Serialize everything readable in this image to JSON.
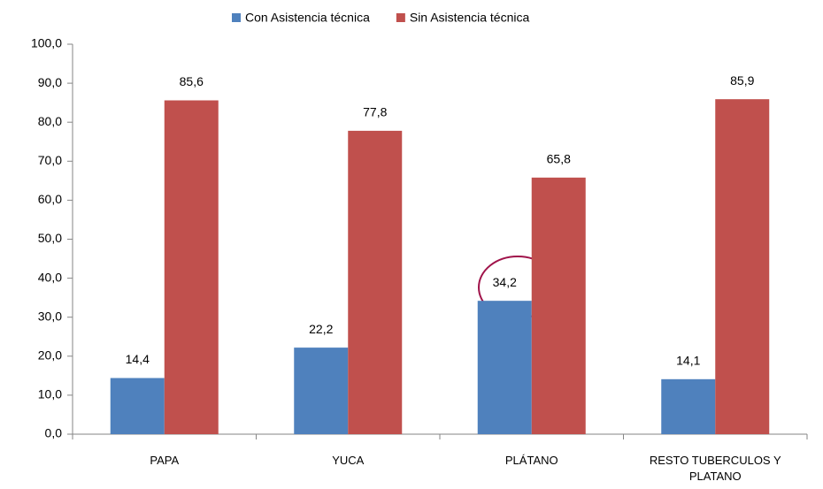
{
  "chart_data": {
    "type": "bar",
    "categories": [
      "PAPA",
      "YUCA",
      "PLÁTANO",
      "RESTO TUBERCULOS Y PLATANO"
    ],
    "series": [
      {
        "name": "Con Asistencia técnica",
        "color": "#4f81bd",
        "values": [
          14.4,
          22.2,
          34.2,
          14.1
        ],
        "value_labels": [
          "14,4",
          "22,2",
          "34,2",
          "14,1"
        ]
      },
      {
        "name": "Sin Asistencia técnica",
        "color": "#c0504d",
        "values": [
          85.6,
          77.8,
          65.8,
          85.9
        ],
        "value_labels": [
          "85,6",
          "77,8",
          "65,8",
          "85,9"
        ]
      }
    ],
    "ylim": [
      0,
      100
    ],
    "yticks": [
      {
        "value": 0,
        "label": "0,0"
      },
      {
        "value": 10,
        "label": "10,0"
      },
      {
        "value": 20,
        "label": "20,0"
      },
      {
        "value": 30,
        "label": "30,0"
      },
      {
        "value": 40,
        "label": "40,0"
      },
      {
        "value": 50,
        "label": "50,0"
      },
      {
        "value": 60,
        "label": "60,0"
      },
      {
        "value": 70,
        "label": "70,0"
      },
      {
        "value": 80,
        "label": "80,0"
      },
      {
        "value": 90,
        "label": "90,0"
      },
      {
        "value": 100,
        "label": "100,0"
      }
    ],
    "grid": false,
    "legend": "top"
  }
}
